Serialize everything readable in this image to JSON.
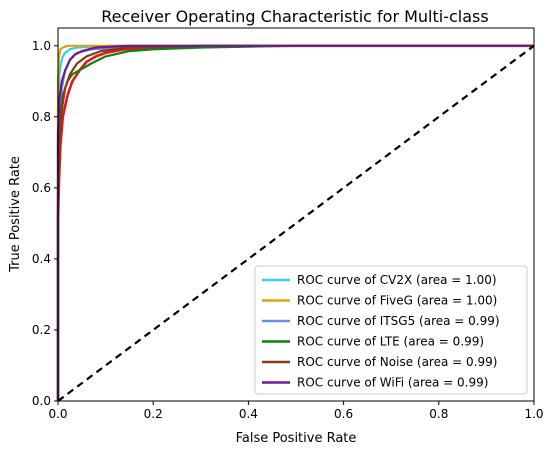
{
  "chart_data": {
    "type": "line",
    "title": "Receiver Operating Characteristic for Multi-class",
    "xlabel": "False Positive Rate",
    "ylabel": "True Positive Rate",
    "xlim": [
      0.0,
      1.0
    ],
    "ylim": [
      0.0,
      1.05
    ],
    "xticks": [
      "0.0",
      "0.2",
      "0.4",
      "0.6",
      "0.8",
      "1.0"
    ],
    "yticks": [
      "0.0",
      "0.2",
      "0.4",
      "0.6",
      "0.8",
      "1.0"
    ],
    "grid": false,
    "legend_position": "lower-right",
    "series": [
      {
        "name": "ROC curve of CV2X (area = 1.00)",
        "color": "#33ccee",
        "points": [
          [
            0,
            0
          ],
          [
            0,
            0.82
          ],
          [
            0.003,
            0.92
          ],
          [
            0.006,
            0.95
          ],
          [
            0.01,
            0.97
          ],
          [
            0.015,
            0.98
          ],
          [
            0.025,
            0.99
          ],
          [
            0.04,
            0.995
          ],
          [
            0.1,
            1.0
          ],
          [
            1,
            1.0
          ]
        ]
      },
      {
        "name": "ROC curve of FiveG (area = 1.00)",
        "color": "#e5a00d",
        "points": [
          [
            0,
            0
          ],
          [
            0,
            0.9
          ],
          [
            0.002,
            0.97
          ],
          [
            0.005,
            0.99
          ],
          [
            0.01,
            0.995
          ],
          [
            0.02,
            1.0
          ],
          [
            1,
            1.0
          ]
        ]
      },
      {
        "name": "ROC curve of ITSG5 (area = 0.99)",
        "color": "#6a8fe0",
        "points": [
          [
            0,
            0
          ],
          [
            0,
            0.72
          ],
          [
            0.003,
            0.8
          ],
          [
            0.008,
            0.88
          ],
          [
            0.015,
            0.93
          ],
          [
            0.025,
            0.96
          ],
          [
            0.04,
            0.98
          ],
          [
            0.07,
            0.99
          ],
          [
            0.15,
            0.995
          ],
          [
            0.3,
            1.0
          ],
          [
            1,
            1.0
          ]
        ]
      },
      {
        "name": "ROC curve of LTE (area = 0.99)",
        "color": "#108010",
        "points": [
          [
            0,
            0
          ],
          [
            0,
            0.55
          ],
          [
            0.002,
            0.7
          ],
          [
            0.005,
            0.8
          ],
          [
            0.01,
            0.86
          ],
          [
            0.02,
            0.9
          ],
          [
            0.03,
            0.92
          ],
          [
            0.05,
            0.935
          ],
          [
            0.07,
            0.95
          ],
          [
            0.1,
            0.97
          ],
          [
            0.15,
            0.985
          ],
          [
            0.2,
            0.99
          ],
          [
            0.3,
            0.995
          ],
          [
            0.5,
            1.0
          ],
          [
            1,
            1.0
          ]
        ]
      },
      {
        "name": "ROC curve of Noise (area = 0.99)",
        "color": "#8b3a0e",
        "points": [
          [
            0,
            0
          ],
          [
            0,
            0.6
          ],
          [
            0.003,
            0.72
          ],
          [
            0.008,
            0.82
          ],
          [
            0.015,
            0.88
          ],
          [
            0.025,
            0.92
          ],
          [
            0.04,
            0.95
          ],
          [
            0.06,
            0.97
          ],
          [
            0.09,
            0.985
          ],
          [
            0.15,
            0.995
          ],
          [
            0.3,
            1.0
          ],
          [
            1,
            1.0
          ]
        ]
      },
      {
        "name": "ROC curve of WiFi (area = 0.99)",
        "color": "#6a1d8a",
        "points": [
          [
            0,
            0
          ],
          [
            0,
            0.75
          ],
          [
            0.003,
            0.85
          ],
          [
            0.008,
            0.9
          ],
          [
            0.015,
            0.93
          ],
          [
            0.025,
            0.96
          ],
          [
            0.035,
            0.975
          ],
          [
            0.05,
            0.985
          ],
          [
            0.08,
            0.995
          ],
          [
            0.15,
            1.0
          ],
          [
            1,
            1.0
          ]
        ]
      }
    ],
    "red_envelope": {
      "color": "#e8141e",
      "points": [
        [
          0,
          0
        ],
        [
          0,
          0.5
        ],
        [
          0.002,
          0.62
        ],
        [
          0.005,
          0.72
        ],
        [
          0.01,
          0.8
        ],
        [
          0.02,
          0.86
        ],
        [
          0.03,
          0.9
        ],
        [
          0.045,
          0.93
        ],
        [
          0.06,
          0.955
        ],
        [
          0.08,
          0.97
        ],
        [
          0.1,
          0.98
        ],
        [
          0.14,
          0.99
        ],
        [
          0.2,
          0.995
        ],
        [
          0.35,
          1.0
        ],
        [
          1,
          1.0
        ]
      ]
    },
    "diagonal": {
      "color": "#000000",
      "style": "dashed"
    }
  }
}
